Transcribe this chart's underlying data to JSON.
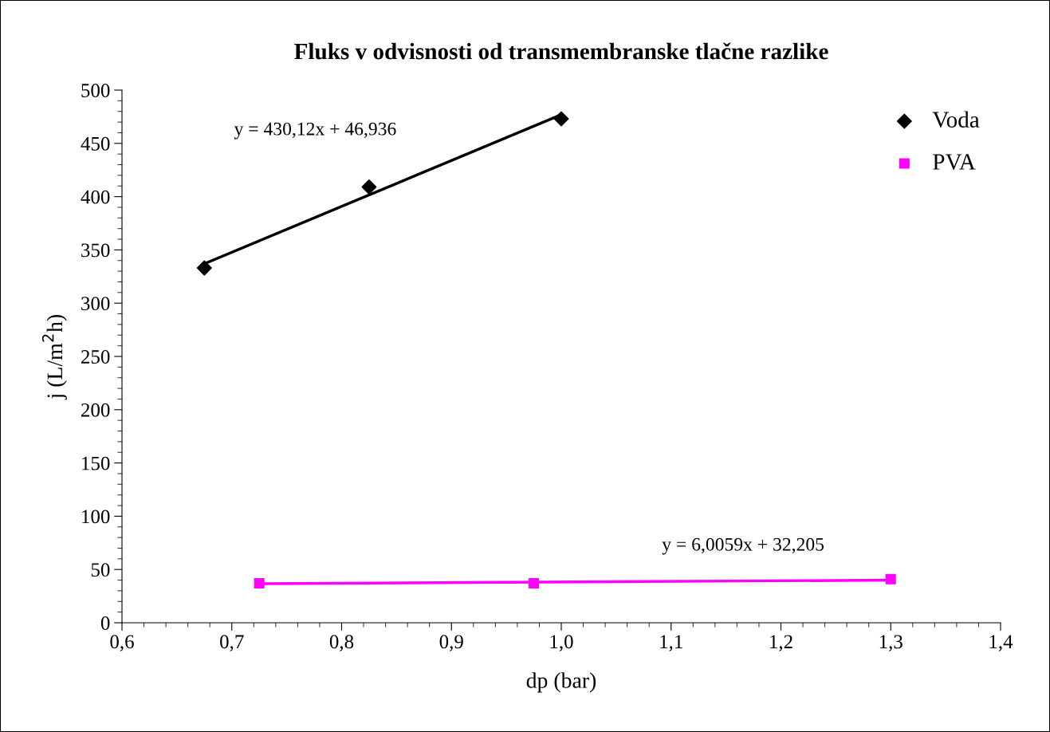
{
  "chart_data": {
    "type": "scatter",
    "title": "Fluks v odvisnosti od transmembranske tlačne razlike",
    "xlabel": "dp (bar)",
    "ylabel": "j (L/m$^{2}$h)",
    "series": [
      {
        "name": "Voda",
        "color": "#000000",
        "marker": "diamond",
        "x": [
          0.675,
          0.825,
          1.0
        ],
        "values": [
          333,
          409,
          473
        ]
      },
      {
        "name": "PVA",
        "color": "#ff00ff",
        "marker": "square",
        "x": [
          0.725,
          0.975,
          1.3
        ],
        "values": [
          37,
          37,
          41
        ]
      },
      {
        "type": "line",
        "color": "#000000",
        "x": [
          0.675,
          1.0
        ],
        "values": [
          337,
          477
        ]
      },
      {
        "type": "line",
        "color": "#ff00ff",
        "x": [
          0.725,
          1.3
        ],
        "values": [
          36.6,
          40
        ]
      }
    ],
    "annotations": [
      "y = 430,12x + 46,936",
      "y = 6,0059x + 32,205"
    ],
    "xlim": [
      0.6,
      1.4
    ],
    "xticks": [
      {
        "value": 0.6,
        "label": "0,6"
      },
      {
        "value": 0.7,
        "label": "0,7"
      },
      {
        "value": 0.8,
        "label": "0,8"
      },
      {
        "value": 0.9,
        "label": "0,9"
      },
      {
        "value": 1.0,
        "label": "1,0"
      },
      {
        "value": 1.1,
        "label": "1,1"
      },
      {
        "value": 1.2,
        "label": "1,2"
      },
      {
        "value": 1.3,
        "label": "1,3"
      },
      {
        "value": 1.4,
        "label": "1,4"
      }
    ],
    "ylim": [
      0,
      500
    ],
    "yticks": [
      0,
      50,
      100,
      150,
      200,
      250,
      300,
      350,
      400,
      450,
      500
    ],
    "legend": "top right",
    "grid": false
  }
}
